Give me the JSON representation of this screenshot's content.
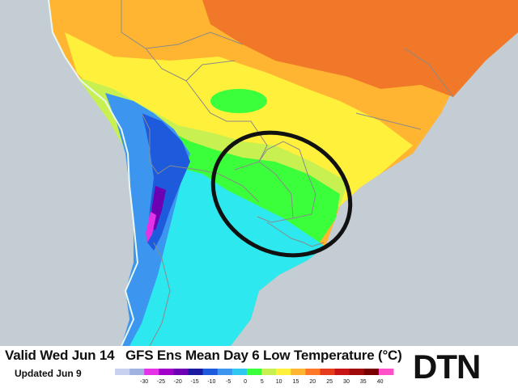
{
  "footer": {
    "valid_text": "Valid Wed Jun 14",
    "updated_text": "Updated Jun 9",
    "title": "GFS Ens Mean Day 6 Low Temperature (°C)",
    "logo_text": "DTN"
  },
  "legend": {
    "ticks": [
      "-30",
      "-25",
      "-20",
      "-15",
      "-10",
      "-5",
      "0",
      "5",
      "10",
      "15",
      "20",
      "25",
      "30",
      "35",
      "40"
    ],
    "colors": [
      "#c8d2f0",
      "#9fb3e0",
      "#e632e6",
      "#a000c8",
      "#6e00b4",
      "#1a1aa0",
      "#1e5adc",
      "#3c96f0",
      "#2ec8f0",
      "#3cff3c",
      "#c8f050",
      "#fff03c",
      "#ffb432",
      "#ff7828",
      "#e63c1e",
      "#c81414",
      "#a00a0a",
      "#780000",
      "#ff50c8"
    ]
  },
  "map": {
    "ocean_color": "#c4ccd4",
    "annotation_color": "#111111",
    "temperature_colors": {
      "hot": "#f07828",
      "warm": "#ffb432",
      "mild": "#fff03c",
      "cool": "#c8f050",
      "green": "#3cff3c",
      "cyan": "#2ee8f0",
      "blue": "#3c96f0",
      "darkblue": "#1e5adc",
      "purple": "#6e00b4",
      "magenta": "#e632e6"
    }
  }
}
